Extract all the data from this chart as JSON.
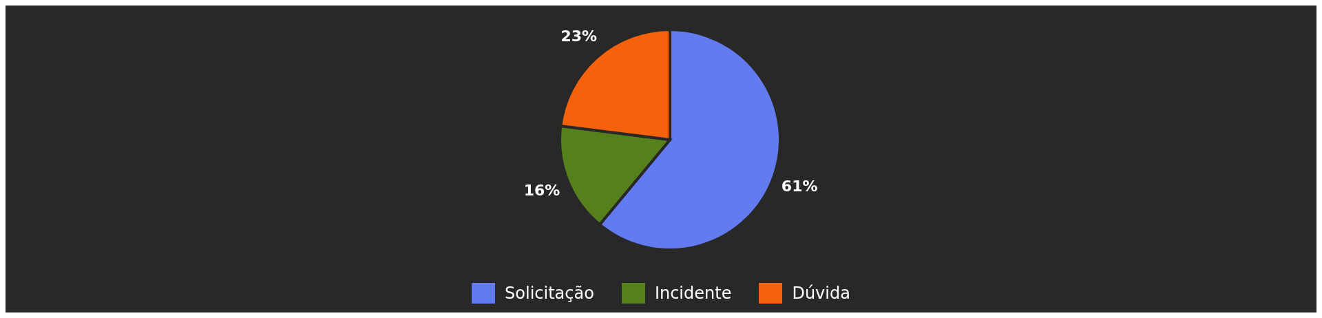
{
  "chart_data": {
    "type": "pie",
    "categories": [
      "Solicitação",
      "Incidente",
      "Dúvida"
    ],
    "values": [
      61,
      16,
      23
    ],
    "colors": [
      "#637bf0",
      "#56801c",
      "#f6620c"
    ],
    "value_labels": [
      "61%",
      "16%",
      "23%"
    ],
    "legend": "bottom"
  }
}
